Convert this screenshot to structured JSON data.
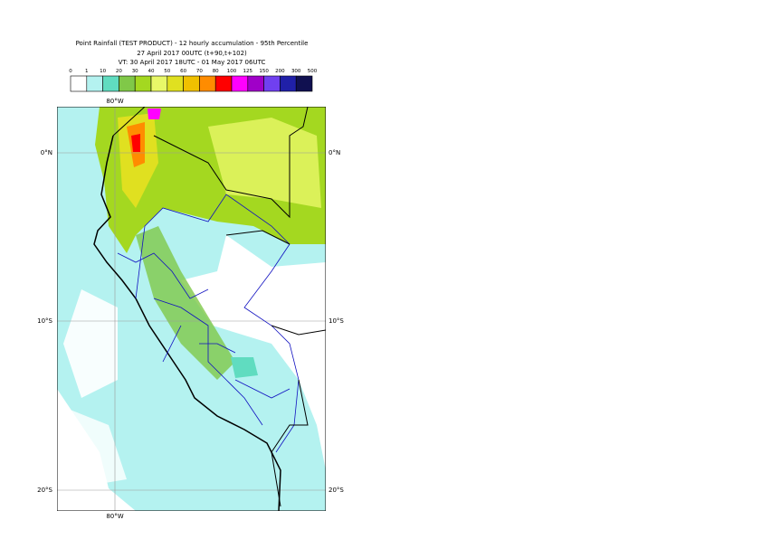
{
  "header": {
    "title": "Point Rainfall (TEST PRODUCT) - 12 hourly accumulation - 95th Percentile",
    "base": "27 April 2017 00UTC (t+90,t+102)",
    "valid": "VT: 30 April 2017 18UTC - 01 May 2017 06UTC"
  },
  "legend": {
    "ticks": [
      "0",
      "1",
      "10",
      "20",
      "30",
      "40",
      "50",
      "60",
      "70",
      "80",
      "100",
      "125",
      "150",
      "200",
      "300",
      "500"
    ],
    "colors": [
      "#ffffff",
      "#b4f2f0",
      "#60dcc0",
      "#80c848",
      "#a4d820",
      "#e8f868",
      "#e0e020",
      "#f0c000",
      "#ff8c00",
      "#ff0000",
      "#ff00ff",
      "#a000c8",
      "#7040f0",
      "#2020a8",
      "#101050"
    ]
  },
  "map": {
    "lat_labels": [
      "0°N",
      "10°S",
      "20°S"
    ],
    "lon_label": "80°W"
  }
}
